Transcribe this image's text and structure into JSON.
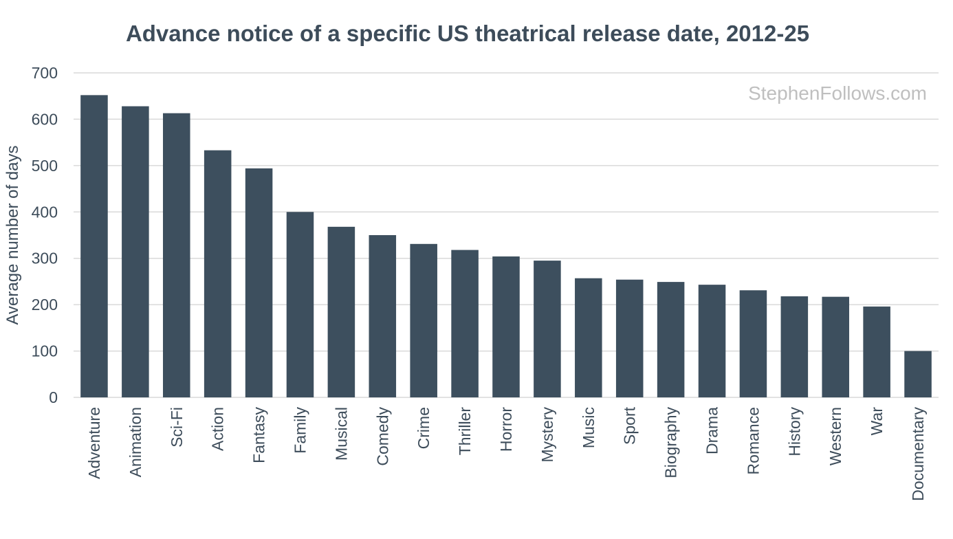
{
  "chart_data": {
    "type": "bar",
    "title": "Advance notice of a specific US theatrical release date, 2012-25",
    "xlabel": "",
    "ylabel": "Average number of days",
    "ylim": [
      0,
      700
    ],
    "yticks": [
      0,
      100,
      200,
      300,
      400,
      500,
      600,
      700
    ],
    "grid": true,
    "bar_color": "#3d4f5e",
    "categories": [
      "Adventure",
      "Animation",
      "Sci-Fi",
      "Action",
      "Fantasy",
      "Family",
      "Musical",
      "Comedy",
      "Crime",
      "Thriller",
      "Horror",
      "Mystery",
      "Music",
      "Sport",
      "Biography",
      "Drama",
      "Romance",
      "History",
      "Western",
      "War",
      "Documentary"
    ],
    "values": [
      652,
      628,
      613,
      533,
      494,
      400,
      368,
      350,
      331,
      318,
      304,
      295,
      257,
      254,
      249,
      243,
      231,
      218,
      217,
      196,
      100
    ],
    "watermark": "StephenFollows.com"
  }
}
